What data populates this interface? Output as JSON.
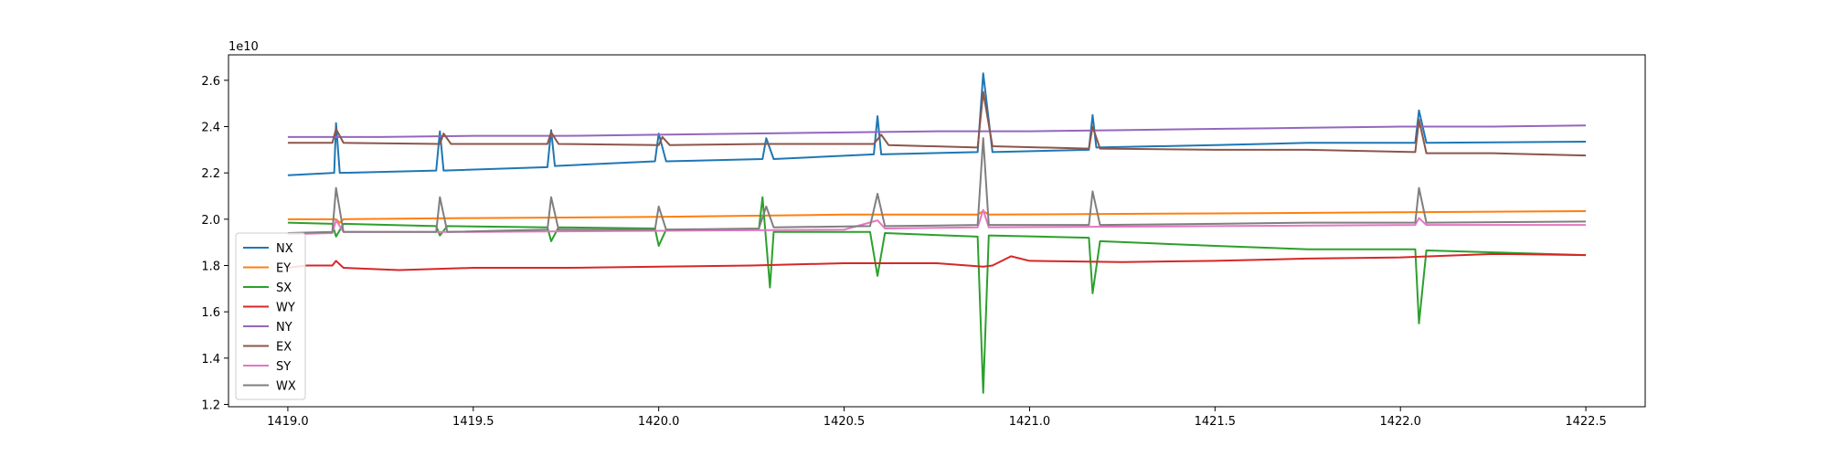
{
  "chart_data": {
    "type": "line",
    "title": "",
    "xlabel": "",
    "ylabel": "",
    "y_offset_label": "1e10",
    "xlim": [
      1418.84,
      1422.66
    ],
    "ylim": [
      1.19,
      2.71
    ],
    "x_ticks": [
      1419.0,
      1419.5,
      1420.0,
      1420.5,
      1421.0,
      1421.5,
      1422.0,
      1422.5
    ],
    "x_tick_labels": [
      "1419.0",
      "1419.5",
      "1420.0",
      "1420.5",
      "1421.0",
      "1421.5",
      "1422.0",
      "1422.5"
    ],
    "y_ticks": [
      1.2,
      1.4,
      1.6,
      1.8,
      2.0,
      2.2,
      2.4,
      2.6
    ],
    "y_tick_labels": [
      "1.2",
      "1.4",
      "1.6",
      "1.8",
      "2.0",
      "2.2",
      "2.4",
      "2.6"
    ],
    "grid": false,
    "legend_position": "lower-left",
    "series": [
      {
        "name": "NX",
        "color": "#1f77b4",
        "points": [
          [
            1419.0,
            2.19
          ],
          [
            1419.125,
            2.2
          ],
          [
            1419.13,
            2.415
          ],
          [
            1419.14,
            2.2
          ],
          [
            1419.4,
            2.21
          ],
          [
            1419.41,
            2.38
          ],
          [
            1419.42,
            2.21
          ],
          [
            1419.7,
            2.225
          ],
          [
            1419.71,
            2.385
          ],
          [
            1419.72,
            2.23
          ],
          [
            1419.99,
            2.25
          ],
          [
            1420.0,
            2.37
          ],
          [
            1420.02,
            2.25
          ],
          [
            1420.28,
            2.26
          ],
          [
            1420.29,
            2.35
          ],
          [
            1420.31,
            2.26
          ],
          [
            1420.58,
            2.28
          ],
          [
            1420.59,
            2.445
          ],
          [
            1420.6,
            2.28
          ],
          [
            1420.86,
            2.29
          ],
          [
            1420.875,
            2.63
          ],
          [
            1420.9,
            2.29
          ],
          [
            1421.16,
            2.3
          ],
          [
            1421.17,
            2.45
          ],
          [
            1421.18,
            2.31
          ],
          [
            1421.5,
            2.32
          ],
          [
            1421.75,
            2.33
          ],
          [
            1422.04,
            2.33
          ],
          [
            1422.05,
            2.47
          ],
          [
            1422.07,
            2.33
          ],
          [
            1422.5,
            2.335
          ]
        ]
      },
      {
        "name": "EY",
        "color": "#ff7f0e",
        "points": [
          [
            1419.0,
            2.0
          ],
          [
            1419.13,
            2.0
          ],
          [
            1419.14,
            1.985
          ],
          [
            1419.15,
            2.0
          ],
          [
            1419.5,
            2.005
          ],
          [
            1420.0,
            2.01
          ],
          [
            1420.5,
            2.02
          ],
          [
            1420.86,
            2.02
          ],
          [
            1420.875,
            2.035
          ],
          [
            1420.89,
            2.02
          ],
          [
            1421.5,
            2.025
          ],
          [
            1422.0,
            2.03
          ],
          [
            1422.5,
            2.035
          ]
        ]
      },
      {
        "name": "SX",
        "color": "#2ca02c",
        "points": [
          [
            1419.0,
            1.985
          ],
          [
            1419.12,
            1.98
          ],
          [
            1419.13,
            1.925
          ],
          [
            1419.15,
            1.98
          ],
          [
            1419.4,
            1.97
          ],
          [
            1419.41,
            1.93
          ],
          [
            1419.43,
            1.97
          ],
          [
            1419.7,
            1.965
          ],
          [
            1419.71,
            1.905
          ],
          [
            1419.73,
            1.965
          ],
          [
            1419.99,
            1.96
          ],
          [
            1420.0,
            1.885
          ],
          [
            1420.02,
            1.955
          ],
          [
            1420.27,
            1.955
          ],
          [
            1420.28,
            2.095
          ],
          [
            1420.3,
            1.705
          ],
          [
            1420.31,
            1.945
          ],
          [
            1420.57,
            1.945
          ],
          [
            1420.59,
            1.755
          ],
          [
            1420.61,
            1.94
          ],
          [
            1420.86,
            1.925
          ],
          [
            1420.875,
            1.25
          ],
          [
            1420.89,
            1.93
          ],
          [
            1421.16,
            1.92
          ],
          [
            1421.17,
            1.68
          ],
          [
            1421.19,
            1.905
          ],
          [
            1421.5,
            1.885
          ],
          [
            1421.75,
            1.87
          ],
          [
            1422.04,
            1.87
          ],
          [
            1422.05,
            1.55
          ],
          [
            1422.07,
            1.865
          ],
          [
            1422.5,
            1.845
          ]
        ]
      },
      {
        "name": "WY",
        "color": "#d62728",
        "points": [
          [
            1419.0,
            1.79
          ],
          [
            1419.05,
            1.8
          ],
          [
            1419.12,
            1.8
          ],
          [
            1419.13,
            1.82
          ],
          [
            1419.15,
            1.79
          ],
          [
            1419.3,
            1.78
          ],
          [
            1419.5,
            1.79
          ],
          [
            1419.75,
            1.79
          ],
          [
            1420.0,
            1.795
          ],
          [
            1420.25,
            1.8
          ],
          [
            1420.5,
            1.81
          ],
          [
            1420.75,
            1.81
          ],
          [
            1420.875,
            1.795
          ],
          [
            1420.9,
            1.8
          ],
          [
            1420.95,
            1.84
          ],
          [
            1421.0,
            1.82
          ],
          [
            1421.25,
            1.815
          ],
          [
            1421.5,
            1.82
          ],
          [
            1421.75,
            1.83
          ],
          [
            1422.0,
            1.835
          ],
          [
            1422.25,
            1.85
          ],
          [
            1422.5,
            1.845
          ]
        ]
      },
      {
        "name": "NY",
        "color": "#9467bd",
        "points": [
          [
            1419.0,
            2.355
          ],
          [
            1419.25,
            2.355
          ],
          [
            1419.5,
            2.36
          ],
          [
            1419.75,
            2.36
          ],
          [
            1420.0,
            2.365
          ],
          [
            1420.25,
            2.37
          ],
          [
            1420.5,
            2.375
          ],
          [
            1420.75,
            2.38
          ],
          [
            1421.0,
            2.38
          ],
          [
            1421.25,
            2.385
          ],
          [
            1421.5,
            2.39
          ],
          [
            1421.75,
            2.395
          ],
          [
            1422.0,
            2.4
          ],
          [
            1422.25,
            2.4
          ],
          [
            1422.5,
            2.405
          ]
        ]
      },
      {
        "name": "EX",
        "color": "#8c564b",
        "points": [
          [
            1419.0,
            2.33
          ],
          [
            1419.12,
            2.33
          ],
          [
            1419.13,
            2.39
          ],
          [
            1419.15,
            2.33
          ],
          [
            1419.41,
            2.325
          ],
          [
            1419.42,
            2.37
          ],
          [
            1419.44,
            2.325
          ],
          [
            1419.7,
            2.325
          ],
          [
            1419.71,
            2.375
          ],
          [
            1419.73,
            2.325
          ],
          [
            1420.0,
            2.32
          ],
          [
            1420.01,
            2.355
          ],
          [
            1420.03,
            2.32
          ],
          [
            1420.29,
            2.325
          ],
          [
            1420.58,
            2.325
          ],
          [
            1420.6,
            2.365
          ],
          [
            1420.62,
            2.32
          ],
          [
            1420.86,
            2.31
          ],
          [
            1420.875,
            2.55
          ],
          [
            1420.9,
            2.315
          ],
          [
            1421.16,
            2.305
          ],
          [
            1421.17,
            2.4
          ],
          [
            1421.19,
            2.305
          ],
          [
            1421.5,
            2.3
          ],
          [
            1421.75,
            2.3
          ],
          [
            1422.04,
            2.29
          ],
          [
            1422.05,
            2.43
          ],
          [
            1422.07,
            2.285
          ],
          [
            1422.25,
            2.285
          ],
          [
            1422.5,
            2.275
          ]
        ]
      },
      {
        "name": "SY",
        "color": "#e377c2",
        "points": [
          [
            1419.0,
            1.935
          ],
          [
            1419.12,
            1.94
          ],
          [
            1419.13,
            1.995
          ],
          [
            1419.15,
            1.945
          ],
          [
            1419.5,
            1.945
          ],
          [
            1420.0,
            1.95
          ],
          [
            1420.5,
            1.955
          ],
          [
            1420.59,
            1.995
          ],
          [
            1420.61,
            1.96
          ],
          [
            1420.86,
            1.965
          ],
          [
            1420.875,
            2.04
          ],
          [
            1420.89,
            1.965
          ],
          [
            1421.5,
            1.97
          ],
          [
            1422.04,
            1.975
          ],
          [
            1422.05,
            2.005
          ],
          [
            1422.07,
            1.975
          ],
          [
            1422.5,
            1.975
          ]
        ]
      },
      {
        "name": "WX",
        "color": "#7f7f7f",
        "points": [
          [
            1419.0,
            1.94
          ],
          [
            1419.12,
            1.945
          ],
          [
            1419.13,
            2.135
          ],
          [
            1419.15,
            1.945
          ],
          [
            1419.4,
            1.945
          ],
          [
            1419.41,
            2.095
          ],
          [
            1419.43,
            1.945
          ],
          [
            1419.7,
            1.955
          ],
          [
            1419.71,
            2.095
          ],
          [
            1419.73,
            1.955
          ],
          [
            1419.99,
            1.955
          ],
          [
            1420.0,
            2.055
          ],
          [
            1420.02,
            1.955
          ],
          [
            1420.27,
            1.96
          ],
          [
            1420.29,
            2.055
          ],
          [
            1420.31,
            1.965
          ],
          [
            1420.57,
            1.97
          ],
          [
            1420.59,
            2.11
          ],
          [
            1420.61,
            1.97
          ],
          [
            1420.86,
            1.975
          ],
          [
            1420.875,
            2.35
          ],
          [
            1420.89,
            1.975
          ],
          [
            1421.16,
            1.975
          ],
          [
            1421.17,
            2.12
          ],
          [
            1421.19,
            1.975
          ],
          [
            1421.5,
            1.98
          ],
          [
            1421.75,
            1.985
          ],
          [
            1422.04,
            1.985
          ],
          [
            1422.05,
            2.135
          ],
          [
            1422.07,
            1.985
          ],
          [
            1422.5,
            1.99
          ]
        ]
      }
    ]
  }
}
